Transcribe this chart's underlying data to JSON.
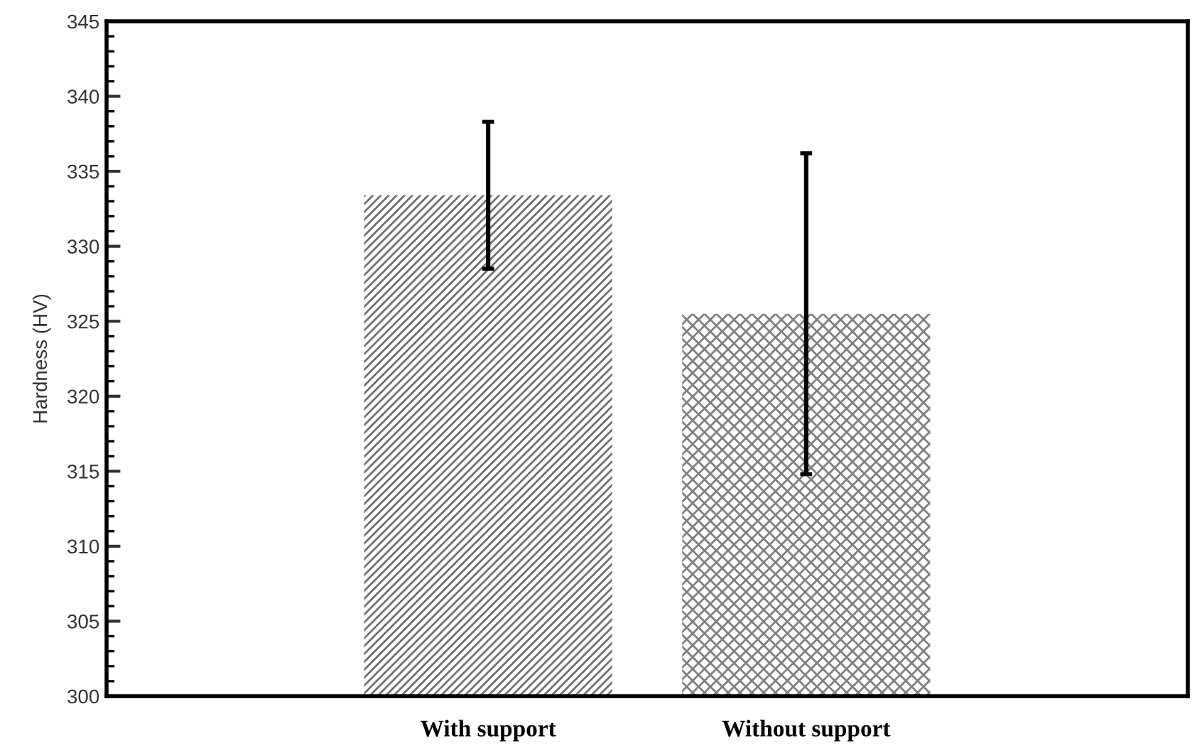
{
  "chart_data": {
    "type": "bar",
    "ylabel": "Hardness (HV)",
    "categories": [
      "With support",
      "Without support"
    ],
    "values": [
      333.4,
      325.5
    ],
    "errors": [
      4.9,
      10.7
    ],
    "colors": [
      "#707070",
      "#808080"
    ],
    "ylim": [
      300,
      345
    ],
    "yticks": [
      300,
      305,
      310,
      315,
      320,
      325,
      330,
      335,
      340,
      345
    ],
    "grid": false
  }
}
